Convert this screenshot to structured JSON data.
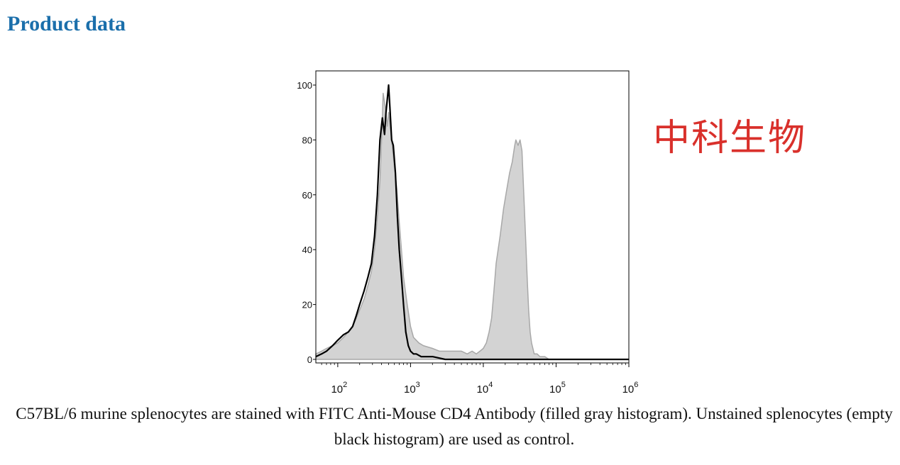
{
  "section_title": "Product data",
  "watermark_text": "中科生物",
  "caption": "C57BL/6 murine splenocytes are stained with FITC Anti-Mouse CD4 Antibody (filled gray histogram). Unstained splenocytes (empty black histogram) are used as control.",
  "colors": {
    "title": "#1b6fab",
    "watermark": "#d9302b",
    "filled_histogram": "#d3d3d3",
    "filled_outline": "#a8a8a8",
    "control_line": "#000000"
  },
  "chart_data": {
    "type": "area",
    "title": "",
    "xlabel": "",
    "ylabel": "",
    "x_scale": "log",
    "xlim": [
      50,
      1000000
    ],
    "ylim": [
      0,
      100
    ],
    "x_ticks": [
      {
        "value": 100,
        "base": "10",
        "exp": "2"
      },
      {
        "value": 1000,
        "base": "10",
        "exp": "3"
      },
      {
        "value": 10000,
        "base": "10",
        "exp": "4"
      },
      {
        "value": 100000,
        "base": "10",
        "exp": "5"
      },
      {
        "value": 1000000,
        "base": "10",
        "exp": "6"
      }
    ],
    "y_ticks": [
      {
        "value": 0,
        "label": "0"
      },
      {
        "value": 20,
        "label": "20"
      },
      {
        "value": 40,
        "label": "40"
      },
      {
        "value": 60,
        "label": "60"
      },
      {
        "value": 80,
        "label": "80"
      },
      {
        "value": 100,
        "label": "100"
      }
    ],
    "grid": false,
    "legend": "none",
    "series": [
      {
        "style": "filled-gray",
        "x": [
          50,
          60,
          70,
          85,
          100,
          120,
          140,
          160,
          180,
          200,
          230,
          260,
          290,
          320,
          350,
          380,
          400,
          420,
          450,
          480,
          500,
          550,
          600,
          650,
          700,
          750,
          800,
          900,
          1000,
          1100,
          1300,
          1500,
          2000,
          2500,
          3000,
          4000,
          5000,
          6000,
          7000,
          8000,
          9000,
          10000,
          11000,
          12000,
          13000,
          14000,
          15000,
          17000,
          19000,
          21000,
          23000,
          25000,
          27000,
          28000,
          30000,
          32000,
          34000,
          36000,
          38000,
          40000,
          42000,
          44000,
          46000,
          48000,
          50000,
          55000,
          60000,
          70000,
          80000,
          100000,
          200000,
          1000000
        ],
        "y": [
          2,
          3,
          4,
          5,
          6,
          8,
          10,
          12,
          15,
          18,
          22,
          27,
          32,
          40,
          52,
          65,
          80,
          97,
          92,
          85,
          90,
          80,
          70,
          62,
          50,
          40,
          30,
          20,
          12,
          8,
          6,
          5,
          4,
          3,
          3,
          3,
          3,
          2,
          3,
          2,
          3,
          4,
          6,
          10,
          15,
          25,
          35,
          45,
          55,
          62,
          68,
          72,
          78,
          80,
          78,
          80,
          76,
          60,
          45,
          30,
          18,
          10,
          6,
          4,
          2,
          2,
          1,
          1,
          0,
          0,
          0,
          0
        ]
      },
      {
        "style": "black-line",
        "x": [
          50,
          60,
          70,
          85,
          100,
          120,
          140,
          160,
          180,
          200,
          230,
          260,
          290,
          320,
          350,
          380,
          410,
          440,
          460,
          480,
          500,
          520,
          550,
          580,
          620,
          660,
          700,
          750,
          800,
          860,
          930,
          1000,
          1100,
          1200,
          1400,
          1700,
          2000,
          3000,
          10000,
          100000,
          1000000
        ],
        "y": [
          1,
          2,
          3,
          5,
          7,
          9,
          10,
          12,
          16,
          20,
          25,
          30,
          35,
          45,
          60,
          80,
          88,
          82,
          90,
          95,
          100,
          92,
          80,
          78,
          68,
          52,
          40,
          30,
          20,
          10,
          5,
          3,
          2,
          2,
          1,
          1,
          1,
          0,
          0,
          0,
          0
        ]
      }
    ]
  }
}
